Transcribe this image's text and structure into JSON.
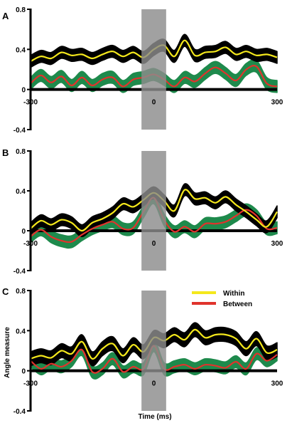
{
  "chart_data": {
    "type": "line",
    "xlabel": "Time (ms)",
    "ylabel": "Angle measure",
    "xlim": [
      -300,
      300
    ],
    "ylim": [
      -0.4,
      0.8
    ],
    "x_ticks": [
      "-300",
      "0",
      "300"
    ],
    "y_ticks": [
      "0.8",
      "0.4",
      "0",
      "-0.4"
    ],
    "shaded_window": [
      -30,
      30
    ],
    "legend": {
      "placement": "top-right",
      "entries": [
        {
          "name": "Within",
          "color": "#f4e81c"
        },
        {
          "name": "Between",
          "color": "#e0332c"
        }
      ]
    },
    "colors": {
      "within_band": "#000000",
      "between_band": "#1e8a4c",
      "window": "#8c8c8c"
    },
    "x": [
      -300,
      -275,
      -250,
      -225,
      -200,
      -175,
      -150,
      -125,
      -100,
      -75,
      -50,
      -25,
      0,
      25,
      50,
      75,
      100,
      125,
      150,
      175,
      200,
      225,
      250,
      275,
      300
    ],
    "panels": [
      {
        "label": "A",
        "series": [
          {
            "name": "Within",
            "band_halfwidth": 0.06,
            "values": [
              0.28,
              0.33,
              0.31,
              0.37,
              0.34,
              0.35,
              0.31,
              0.35,
              0.38,
              0.33,
              0.37,
              0.32,
              0.4,
              0.44,
              0.33,
              0.49,
              0.34,
              0.37,
              0.38,
              0.42,
              0.35,
              0.38,
              0.34,
              0.35,
              0.32
            ]
          },
          {
            "name": "Between",
            "band_halfwidth": 0.06,
            "values": [
              0.06,
              0.14,
              0.07,
              0.13,
              0.04,
              0.12,
              0.04,
              0.1,
              0.12,
              0.03,
              0.1,
              0.12,
              0.15,
              0.1,
              0.03,
              0.12,
              0.08,
              0.16,
              0.22,
              0.16,
              0.09,
              0.2,
              0.23,
              0.06,
              0.03
            ]
          }
        ]
      },
      {
        "label": "B",
        "series": [
          {
            "name": "Within",
            "band_halfwidth": 0.06,
            "values": [
              0.02,
              0.1,
              0.06,
              0.11,
              0.08,
              0.0,
              0.08,
              0.12,
              0.18,
              0.27,
              0.24,
              0.31,
              0.38,
              0.3,
              0.2,
              0.41,
              0.32,
              0.33,
              0.28,
              0.34,
              0.26,
              0.19,
              0.11,
              0.04,
              0.19
            ]
          },
          {
            "name": "Between",
            "band_halfwidth": 0.06,
            "values": [
              -0.06,
              0.01,
              -0.06,
              -0.1,
              -0.11,
              -0.04,
              0.02,
              0.06,
              0.09,
              0.02,
              0.03,
              0.19,
              0.33,
              0.11,
              -0.01,
              0.04,
              -0.01,
              0.07,
              0.07,
              0.09,
              0.15,
              0.21,
              0.15,
              0.02,
              0.03
            ]
          }
        ]
      },
      {
        "label": "C",
        "series": [
          {
            "name": "Within",
            "band_halfwidth": 0.07,
            "values": [
              0.12,
              0.15,
              0.13,
              0.2,
              0.17,
              0.29,
              0.12,
              0.22,
              0.27,
              0.15,
              0.26,
              0.19,
              0.33,
              0.3,
              0.36,
              0.31,
              0.41,
              0.33,
              0.36,
              0.36,
              0.32,
              0.22,
              0.32,
              0.18,
              0.21
            ]
          },
          {
            "name": "Between",
            "band_halfwidth": 0.06,
            "values": [
              0.1,
              0.02,
              0.07,
              0.04,
              0.1,
              0.21,
              -0.01,
              0.02,
              0.12,
              -0.01,
              0.04,
              0.02,
              0.25,
              0.02,
              0.04,
              0.06,
              0.02,
              0.06,
              0.05,
              0.03,
              0.09,
              0.02,
              0.17,
              0.1,
              0.16
            ]
          }
        ]
      }
    ]
  }
}
